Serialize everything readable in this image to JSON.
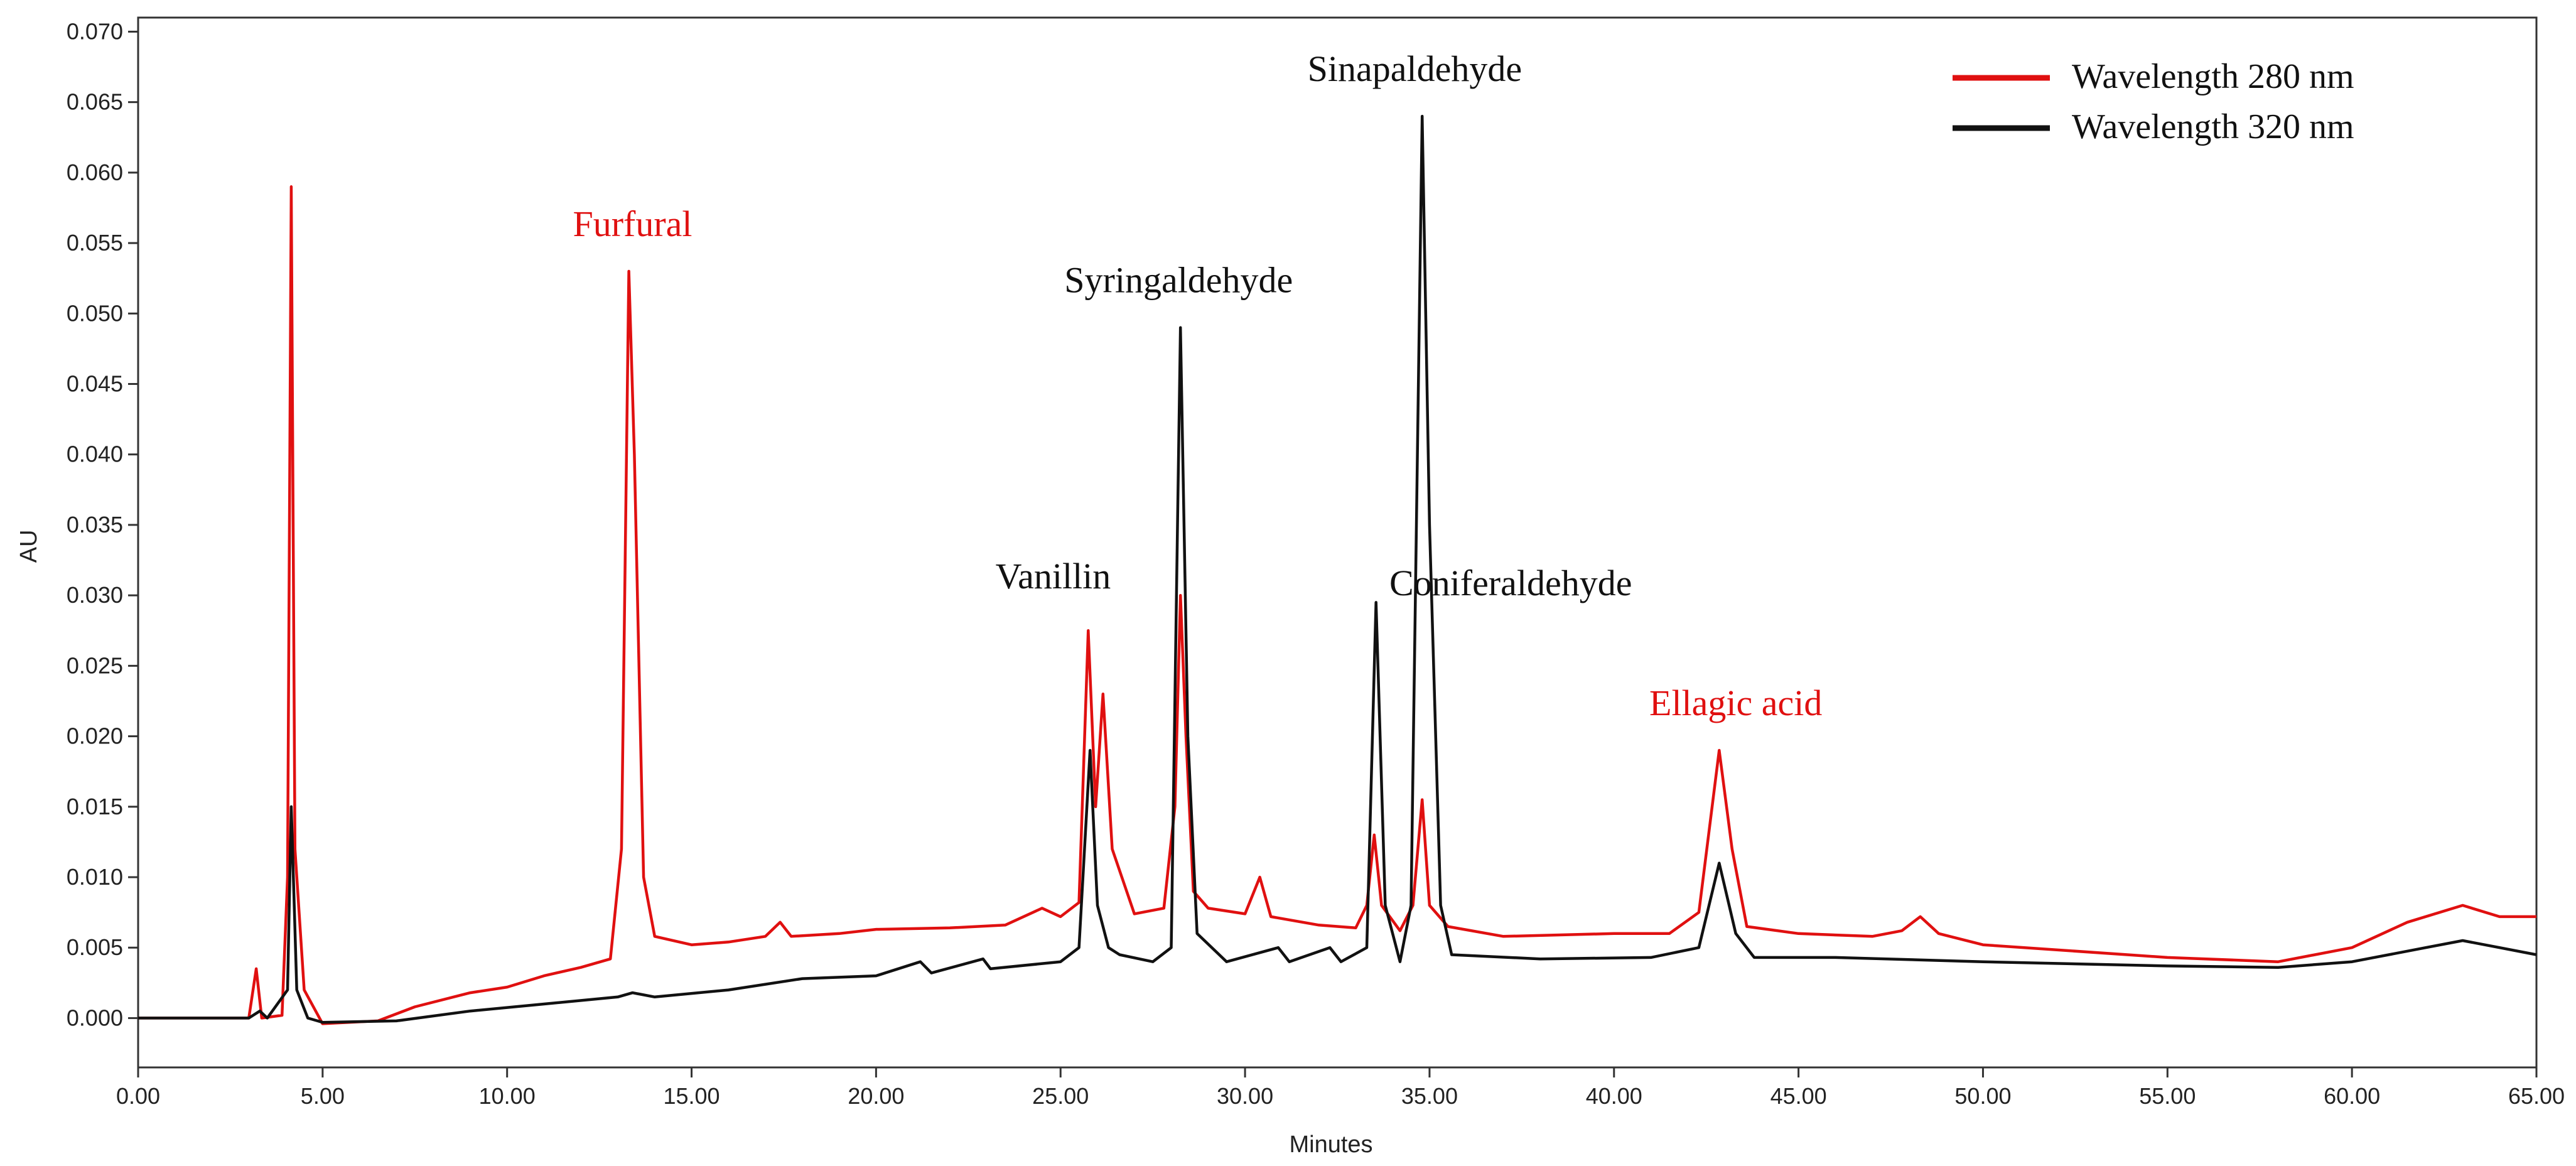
{
  "chart_data": {
    "type": "line",
    "xlabel": "Minutes",
    "ylabel": "AU",
    "xlim": [
      0,
      65
    ],
    "ylim": [
      -0.0035,
      0.071
    ],
    "x_ticks": [
      "0.00",
      "5.00",
      "10.00",
      "15.00",
      "20.00",
      "25.00",
      "30.00",
      "35.00",
      "40.00",
      "45.00",
      "50.00",
      "55.00",
      "60.00",
      "65.00"
    ],
    "y_ticks": [
      "0.000",
      "0.005",
      "0.010",
      "0.015",
      "0.020",
      "0.025",
      "0.030",
      "0.035",
      "0.040",
      "0.045",
      "0.050",
      "0.055",
      "0.060",
      "0.065",
      "0.070"
    ],
    "legend_position": "top-right",
    "series": [
      {
        "name": "Wavelength 280 nm",
        "color": "#e01010",
        "points": [
          [
            0,
            0
          ],
          [
            1.5,
            0
          ],
          [
            3.0,
            0
          ],
          [
            3.2,
            0.0035
          ],
          [
            3.35,
            0
          ],
          [
            3.9,
            0.0002
          ],
          [
            4.05,
            0.01
          ],
          [
            4.15,
            0.059
          ],
          [
            4.25,
            0.012
          ],
          [
            4.5,
            0.002
          ],
          [
            5.0,
            -0.0004
          ],
          [
            6.5,
            -0.0002
          ],
          [
            7.5,
            0.0008
          ],
          [
            9.0,
            0.0018
          ],
          [
            10.0,
            0.0022
          ],
          [
            11.0,
            0.003
          ],
          [
            12.0,
            0.0036
          ],
          [
            12.8,
            0.0042
          ],
          [
            13.1,
            0.012
          ],
          [
            13.3,
            0.053
          ],
          [
            13.45,
            0.04
          ],
          [
            13.7,
            0.01
          ],
          [
            14.0,
            0.0058
          ],
          [
            15.0,
            0.0052
          ],
          [
            16.0,
            0.0054
          ],
          [
            17.0,
            0.0058
          ],
          [
            17.4,
            0.0068
          ],
          [
            17.7,
            0.0058
          ],
          [
            19.0,
            0.006
          ],
          [
            20.0,
            0.0063
          ],
          [
            22.0,
            0.0064
          ],
          [
            23.5,
            0.0066
          ],
          [
            24.5,
            0.0078
          ],
          [
            25.0,
            0.0072
          ],
          [
            25.5,
            0.0082
          ],
          [
            25.75,
            0.0275
          ],
          [
            25.95,
            0.015
          ],
          [
            26.15,
            0.023
          ],
          [
            26.4,
            0.012
          ],
          [
            27.0,
            0.0074
          ],
          [
            27.8,
            0.0078
          ],
          [
            28.1,
            0.015
          ],
          [
            28.25,
            0.03
          ],
          [
            28.4,
            0.02
          ],
          [
            28.6,
            0.009
          ],
          [
            29.0,
            0.0078
          ],
          [
            30.0,
            0.0074
          ],
          [
            30.4,
            0.01
          ],
          [
            30.7,
            0.0072
          ],
          [
            32.0,
            0.0066
          ],
          [
            33.0,
            0.0064
          ],
          [
            33.3,
            0.008
          ],
          [
            33.5,
            0.013
          ],
          [
            33.7,
            0.008
          ],
          [
            34.2,
            0.0062
          ],
          [
            34.55,
            0.008
          ],
          [
            34.8,
            0.0155
          ],
          [
            35.0,
            0.008
          ],
          [
            35.5,
            0.0065
          ],
          [
            37.0,
            0.0058
          ],
          [
            40.0,
            0.006
          ],
          [
            41.5,
            0.006
          ],
          [
            42.3,
            0.0075
          ],
          [
            42.85,
            0.019
          ],
          [
            43.2,
            0.012
          ],
          [
            43.6,
            0.0065
          ],
          [
            45.0,
            0.006
          ],
          [
            47.0,
            0.0058
          ],
          [
            47.8,
            0.0062
          ],
          [
            48.3,
            0.0072
          ],
          [
            48.8,
            0.006
          ],
          [
            50.0,
            0.0052
          ],
          [
            55.0,
            0.0043
          ],
          [
            58.0,
            0.004
          ],
          [
            60.0,
            0.005
          ],
          [
            61.5,
            0.0068
          ],
          [
            63.0,
            0.008
          ],
          [
            64.0,
            0.0072
          ],
          [
            65.0,
            0.0072
          ]
        ]
      },
      {
        "name": "Wavelength 320 nm",
        "color": "#111111",
        "points": [
          [
            0,
            0
          ],
          [
            3.0,
            0
          ],
          [
            3.3,
            0.0005
          ],
          [
            3.5,
            0
          ],
          [
            4.05,
            0.002
          ],
          [
            4.15,
            0.015
          ],
          [
            4.3,
            0.002
          ],
          [
            4.6,
            0
          ],
          [
            5.0,
            -0.0003
          ],
          [
            7.0,
            -0.0002
          ],
          [
            9.0,
            0.0005
          ],
          [
            11.0,
            0.001
          ],
          [
            13.0,
            0.0015
          ],
          [
            13.4,
            0.0018
          ],
          [
            14.0,
            0.0015
          ],
          [
            16.0,
            0.002
          ],
          [
            18.0,
            0.0028
          ],
          [
            20.0,
            0.003
          ],
          [
            21.2,
            0.004
          ],
          [
            21.5,
            0.0032
          ],
          [
            22.9,
            0.0042
          ],
          [
            23.1,
            0.0035
          ],
          [
            25.0,
            0.004
          ],
          [
            25.5,
            0.005
          ],
          [
            25.8,
            0.019
          ],
          [
            26.0,
            0.008
          ],
          [
            26.3,
            0.005
          ],
          [
            26.6,
            0.0045
          ],
          [
            27.5,
            0.004
          ],
          [
            28.0,
            0.005
          ],
          [
            28.25,
            0.049
          ],
          [
            28.45,
            0.02
          ],
          [
            28.7,
            0.006
          ],
          [
            29.5,
            0.004
          ],
          [
            30.9,
            0.005
          ],
          [
            31.2,
            0.004
          ],
          [
            32.3,
            0.005
          ],
          [
            32.6,
            0.004
          ],
          [
            33.3,
            0.005
          ],
          [
            33.55,
            0.0295
          ],
          [
            33.8,
            0.008
          ],
          [
            34.2,
            0.004
          ],
          [
            34.5,
            0.008
          ],
          [
            34.8,
            0.064
          ],
          [
            35.0,
            0.035
          ],
          [
            35.3,
            0.008
          ],
          [
            35.6,
            0.0045
          ],
          [
            38.0,
            0.0042
          ],
          [
            41.0,
            0.0043
          ],
          [
            42.3,
            0.005
          ],
          [
            42.85,
            0.011
          ],
          [
            43.3,
            0.006
          ],
          [
            43.8,
            0.0043
          ],
          [
            46.0,
            0.0043
          ],
          [
            50.0,
            0.004
          ],
          [
            55.0,
            0.0037
          ],
          [
            58.0,
            0.0036
          ],
          [
            60.0,
            0.004
          ],
          [
            62.0,
            0.005
          ],
          [
            63.0,
            0.0055
          ],
          [
            64.0,
            0.005
          ],
          [
            65.0,
            0.0045
          ]
        ]
      }
    ],
    "annotations": [
      {
        "text": "Furfural",
        "x": 13.4,
        "y": 0.0555,
        "color": "#e01010"
      },
      {
        "text": "Sinapaldehyde",
        "x": 34.6,
        "y": 0.0665,
        "color": "#111111"
      },
      {
        "text": "Syringaldehyde",
        "x": 28.2,
        "y": 0.0515,
        "color": "#111111"
      },
      {
        "text": "Vanillin",
        "x": 24.8,
        "y": 0.0305,
        "color": "#111111"
      },
      {
        "text": "Coniferaldehyde",
        "x": 37.2,
        "y": 0.03,
        "color": "#111111"
      },
      {
        "text": "Ellagic acid",
        "x": 43.3,
        "y": 0.0215,
        "color": "#e01010"
      }
    ]
  }
}
